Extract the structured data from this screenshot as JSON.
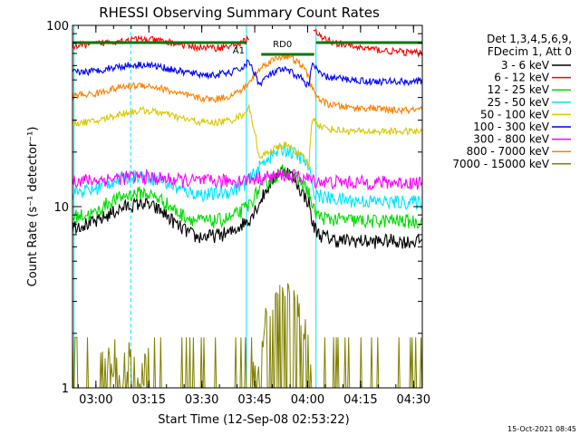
{
  "chart_data": {
    "type": "line",
    "title": "RHESSI Observing Summary Count Rates",
    "xlabel": "Start Time (12-Sep-08 02:53:22)",
    "ylabel": "Count Rate (s⁻¹ detector⁻¹)",
    "yscale": "log",
    "ylim": [
      1,
      100
    ],
    "xlim": [
      "02:53:22",
      "04:32:30"
    ],
    "x_ticks": [
      "03:00",
      "03:15",
      "03:30",
      "03:45",
      "04:00",
      "04:15",
      "04:30"
    ],
    "y_ticks": [
      "1",
      "10",
      "100"
    ],
    "x_minutes": [
      0,
      6.63,
      10,
      15,
      20,
      25,
      30,
      35,
      40,
      45,
      48,
      50,
      53,
      55,
      58,
      60,
      62,
      65,
      67,
      68,
      70,
      72,
      75,
      80,
      85,
      90,
      95,
      99.13
    ],
    "series": [
      {
        "name": "3 - 6 keV",
        "color": "#000000",
        "values": [
          7.8,
          8.2,
          9,
          10,
          10.5,
          9.5,
          7.8,
          6.8,
          6.9,
          7.2,
          8,
          8.5,
          10.5,
          12.5,
          15,
          16,
          15,
          12,
          10.5,
          8,
          7,
          6.8,
          6.5,
          6.5,
          6.4,
          6.5,
          6.4,
          6.5
        ]
      },
      {
        "name": "6 - 12 keV",
        "color": "#ff0000",
        "values": [
          77,
          79,
          81,
          83,
          84,
          82,
          79,
          76,
          75,
          77,
          80,
          85,
          0,
          0,
          0,
          0,
          0,
          0,
          0,
          95,
          87,
          83,
          80,
          76,
          74,
          72,
          71,
          70
        ]
      },
      {
        "name": "12 - 25 keV",
        "color": "#00dd00",
        "values": [
          8.8,
          9.2,
          10.5,
          11.5,
          12,
          11,
          9.2,
          8.4,
          8.3,
          8.7,
          9.5,
          10.2,
          12.5,
          13.5,
          15,
          16,
          15,
          13.5,
          12,
          9.8,
          8.8,
          8.6,
          8.5,
          8.4,
          8.3,
          8.4,
          8.3,
          8.3
        ]
      },
      {
        "name": "25 - 50 keV",
        "color": "#00e5ff",
        "values": [
          12,
          12.5,
          13.5,
          14.5,
          15,
          14,
          12.5,
          11.8,
          11.7,
          12.2,
          13,
          14,
          16.5,
          18.5,
          20,
          21,
          20,
          18.5,
          16.5,
          12.5,
          11.5,
          11.2,
          11,
          10.8,
          10.7,
          10.6,
          10.6,
          10.6
        ]
      },
      {
        "name": "50 - 100 keV",
        "color": "#d8c800",
        "values": [
          29,
          29.5,
          31,
          33,
          34,
          33,
          31,
          29.5,
          29,
          30,
          32,
          35,
          18,
          20,
          21,
          22,
          21,
          19,
          17,
          31,
          28,
          27,
          26.5,
          26,
          26,
          26,
          26,
          26
        ]
      },
      {
        "name": "100 - 300 keV",
        "color": "#0000ff",
        "values": [
          55,
          56,
          58,
          60,
          61,
          59,
          56,
          54,
          53,
          55,
          58,
          63,
          47,
          52,
          56,
          57,
          55,
          51,
          46,
          62,
          54,
          52,
          51,
          50,
          49,
          49,
          49,
          49
        ]
      },
      {
        "name": "300 - 800 keV",
        "color": "#ff00ff",
        "values": [
          14,
          14,
          14.2,
          14.5,
          14.6,
          14.3,
          14,
          13.9,
          13.8,
          13.9,
          14,
          14.2,
          14.4,
          14.6,
          14.8,
          15,
          14.8,
          14.5,
          14.2,
          14,
          13.8,
          13.7,
          13.7,
          13.6,
          13.6,
          13.6,
          13.6,
          13.6
        ]
      },
      {
        "name": "800 - 7000 keV",
        "color": "#ff8000",
        "values": [
          41,
          42,
          44,
          46,
          47,
          45,
          42,
          40,
          39,
          41,
          44,
          48,
          57,
          62,
          66,
          68,
          66,
          60,
          52,
          44,
          39,
          37,
          36,
          35,
          35,
          34,
          34,
          34
        ]
      },
      {
        "name": "7000 - 15000 keV",
        "color": "#808000",
        "values": [
          1,
          1,
          1.5,
          1.5,
          1.4,
          1,
          1,
          1,
          1,
          1,
          1,
          1,
          1.6,
          2.5,
          3.5,
          3.6,
          3.5,
          2.5,
          1.6,
          1,
          1,
          1,
          1,
          1.1,
          1,
          1,
          1,
          1
        ]
      }
    ],
    "annotations": {
      "attenuator_label": "A1",
      "decimation_label": "RD0",
      "attenuator_intervals": [
        [
          0,
          49.3
        ],
        [
          69,
          99
        ]
      ],
      "decimation_intervals": [
        [
          53.5,
          68.5
        ]
      ],
      "dashed_markers_min": [
        16.5,
        99.13
      ]
    },
    "legend": {
      "header_line1": "Det 1,3,4,5,6,9,",
      "header_line2": "FDecim 1, Att 0",
      "placement": "right"
    },
    "footer_timestamp": "15-Oct-2021 08:45"
  }
}
